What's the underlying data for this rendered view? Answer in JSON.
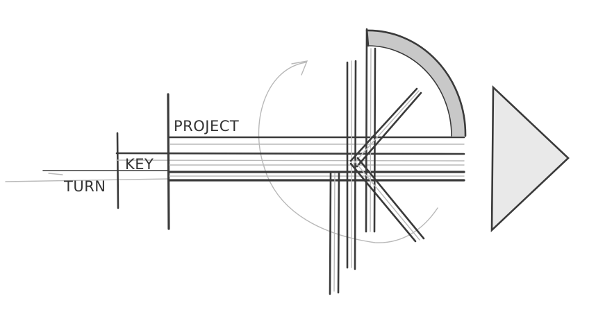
{
  "labels": {
    "project": "PROJECT",
    "key": "KEY",
    "turn": "TURN"
  },
  "colors": {
    "ink": "#3a3a3a",
    "pencil": "#b9b9b9",
    "shade": "#c8c8c8",
    "paper": "#ffffff"
  }
}
